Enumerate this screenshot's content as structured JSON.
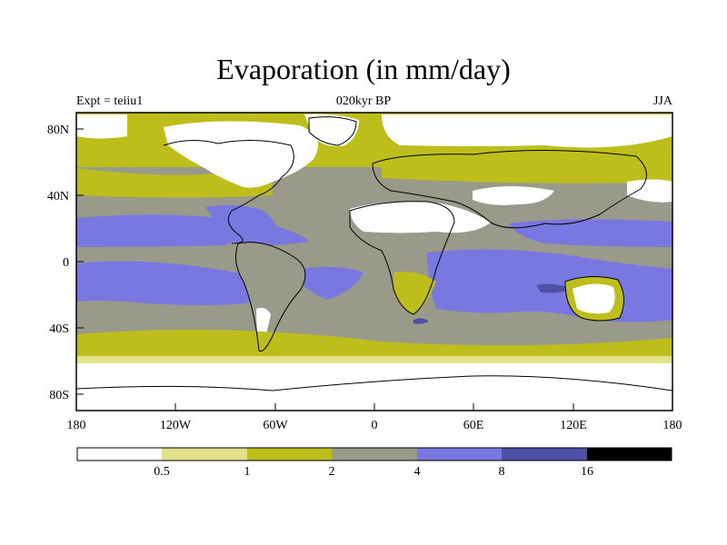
{
  "title": "Evaporation (in mm/day)",
  "subtitle_left": "Expt = teiiu1",
  "subtitle_center": "020kyr BP",
  "subtitle_right": "JJA",
  "lat_labels": [
    "80N",
    "40N",
    "0",
    "40S",
    "80S"
  ],
  "lon_labels": [
    "180",
    "120W",
    "60W",
    "0",
    "60E",
    "120E",
    "180"
  ],
  "colorbar": {
    "colors": [
      "#ffffff",
      "#e2e28a",
      "#bdbd1c",
      "#9a9a8a",
      "#7878e0",
      "#5050a8",
      "#000000"
    ],
    "labels": [
      "0.5",
      "1",
      "2",
      "4",
      "8",
      "16"
    ]
  },
  "colors": {
    "white": "#ffffff",
    "light_yellow": "#e2e28a",
    "olive": "#bdbd1c",
    "gray": "#9a9a8a",
    "blue": "#7878e0",
    "dark_blue": "#5050a8"
  }
}
